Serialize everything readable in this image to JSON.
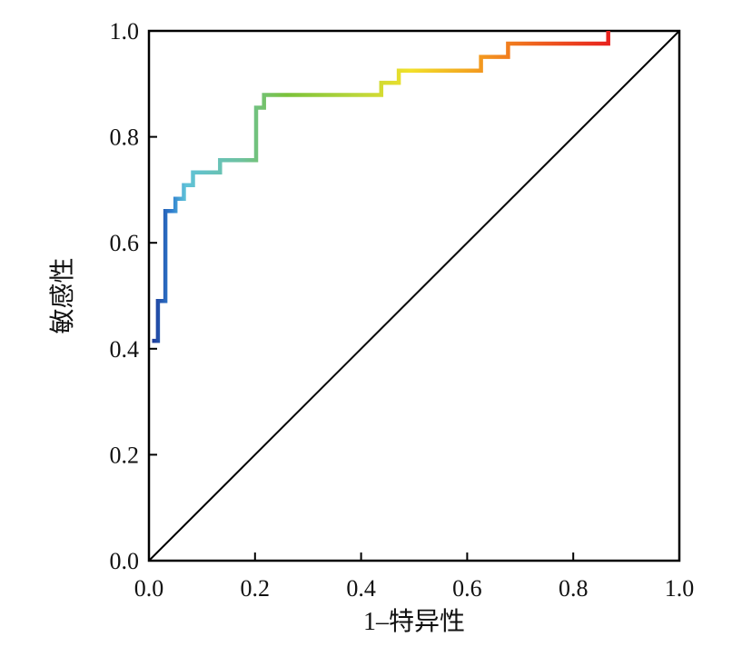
{
  "chart_data": {
    "type": "line",
    "title": "",
    "xlabel": "1–特异性",
    "ylabel": "敏感性",
    "xlim": [
      0.0,
      1.0
    ],
    "ylim": [
      0.0,
      1.0
    ],
    "grid": false,
    "legend": "none",
    "x_ticks": [
      "0.0",
      "0.2",
      "0.4",
      "0.6",
      "0.8",
      "1.0"
    ],
    "y_ticks": [
      "0.0",
      "0.2",
      "0.4",
      "0.6",
      "0.8",
      "1.0"
    ],
    "reference_line": {
      "x": [
        0.0,
        1.0
      ],
      "y": [
        0.0,
        1.0
      ],
      "color": "#000000"
    },
    "series": [
      {
        "color_scheme": "rainbow gradient (blue → cyan → green → yellow → orange → red)",
        "x": [
          0.006,
          0.017,
          0.017,
          0.031,
          0.031,
          0.05,
          0.05,
          0.066,
          0.066,
          0.083,
          0.083,
          0.134,
          0.134,
          0.202,
          0.202,
          0.217,
          0.217,
          0.438,
          0.438,
          0.471,
          0.471,
          0.626,
          0.626,
          0.677,
          0.677,
          0.866,
          0.866
        ],
        "y": [
          0.415,
          0.415,
          0.49,
          0.49,
          0.66,
          0.66,
          0.683,
          0.683,
          0.709,
          0.709,
          0.733,
          0.733,
          0.756,
          0.756,
          0.855,
          0.855,
          0.879,
          0.879,
          0.902,
          0.902,
          0.925,
          0.925,
          0.951,
          0.951,
          0.976,
          0.976,
          1.0
        ]
      }
    ]
  }
}
